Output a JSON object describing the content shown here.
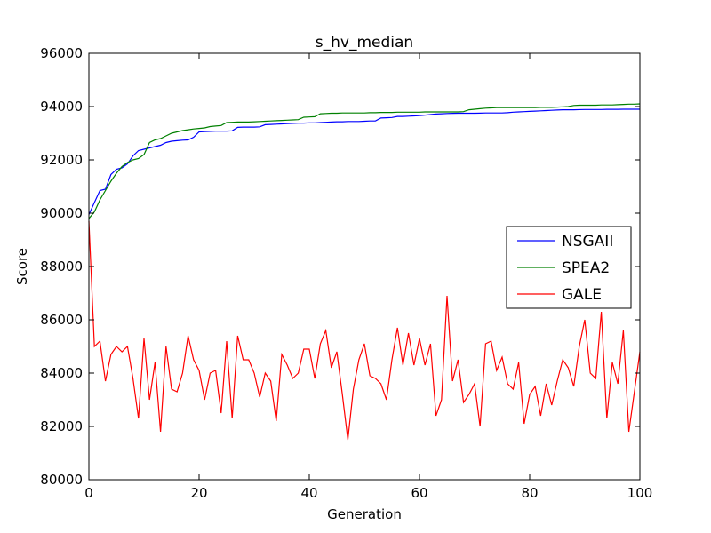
{
  "chart_data": {
    "type": "line",
    "title": "s_hv_median",
    "xlabel": "Generation",
    "ylabel": "Score",
    "xlim": [
      0,
      100
    ],
    "ylim": [
      80000,
      96000
    ],
    "xticks": [
      0,
      20,
      40,
      60,
      80,
      100
    ],
    "yticks": [
      80000,
      82000,
      84000,
      86000,
      88000,
      90000,
      92000,
      94000,
      96000
    ],
    "grid": false,
    "legend_position": "center-right",
    "x": [
      0,
      1,
      2,
      3,
      4,
      5,
      6,
      7,
      8,
      9,
      10,
      11,
      12,
      13,
      14,
      15,
      16,
      17,
      18,
      19,
      20,
      21,
      22,
      23,
      24,
      25,
      26,
      27,
      28,
      29,
      30,
      31,
      32,
      33,
      34,
      35,
      36,
      37,
      38,
      39,
      40,
      41,
      42,
      43,
      44,
      45,
      46,
      47,
      48,
      49,
      50,
      51,
      52,
      53,
      54,
      55,
      56,
      57,
      58,
      59,
      60,
      61,
      62,
      63,
      64,
      65,
      66,
      67,
      68,
      69,
      70,
      71,
      72,
      73,
      74,
      75,
      76,
      77,
      78,
      79,
      80,
      81,
      82,
      83,
      84,
      85,
      86,
      87,
      88,
      89,
      90,
      91,
      92,
      93,
      94,
      95,
      96,
      97,
      98,
      99,
      100
    ],
    "series": [
      {
        "name": "NSGAII",
        "color": "#0000ff",
        "values": [
          89950,
          90400,
          90850,
          90900,
          91450,
          91650,
          91700,
          91850,
          92150,
          92350,
          92400,
          92450,
          92500,
          92550,
          92650,
          92700,
          92720,
          92740,
          92750,
          92850,
          93050,
          93060,
          93070,
          93080,
          93080,
          93080,
          93090,
          93220,
          93230,
          93230,
          93230,
          93240,
          93320,
          93330,
          93340,
          93350,
          93360,
          93370,
          93380,
          93380,
          93390,
          93390,
          93400,
          93410,
          93420,
          93430,
          93430,
          93440,
          93440,
          93440,
          93450,
          93460,
          93460,
          93570,
          93580,
          93590,
          93630,
          93630,
          93640,
          93650,
          93660,
          93680,
          93700,
          93720,
          93730,
          93740,
          93745,
          93750,
          93750,
          93750,
          93750,
          93755,
          93760,
          93760,
          93760,
          93760,
          93770,
          93790,
          93800,
          93810,
          93820,
          93830,
          93840,
          93850,
          93860,
          93870,
          93880,
          93880,
          93880,
          93885,
          93890,
          93890,
          93890,
          93890,
          93895,
          93895,
          93895,
          93900,
          93900,
          93900,
          93900
        ]
      },
      {
        "name": "SPEA2",
        "color": "#008000",
        "values": [
          89800,
          90050,
          90500,
          90850,
          91200,
          91500,
          91750,
          91900,
          92000,
          92050,
          92200,
          92650,
          92750,
          92800,
          92900,
          93000,
          93050,
          93100,
          93130,
          93160,
          93180,
          93200,
          93250,
          93270,
          93290,
          93400,
          93410,
          93420,
          93420,
          93420,
          93430,
          93440,
          93450,
          93460,
          93470,
          93480,
          93490,
          93500,
          93510,
          93600,
          93610,
          93620,
          93730,
          93740,
          93750,
          93750,
          93760,
          93760,
          93760,
          93760,
          93760,
          93770,
          93770,
          93780,
          93780,
          93780,
          93790,
          93790,
          93790,
          93790,
          93790,
          93800,
          93800,
          93800,
          93800,
          93800,
          93800,
          93800,
          93810,
          93880,
          93900,
          93920,
          93940,
          93950,
          93960,
          93960,
          93960,
          93960,
          93960,
          93960,
          93960,
          93960,
          93970,
          93970,
          93970,
          93980,
          93990,
          94000,
          94040,
          94050,
          94050,
          94050,
          94050,
          94060,
          94060,
          94060,
          94070,
          94080,
          94090,
          94090,
          94100
        ]
      },
      {
        "name": "GALE",
        "color": "#ff0000",
        "values": [
          89700,
          85000,
          85200,
          83700,
          84700,
          85000,
          84800,
          85000,
          83800,
          82300,
          85300,
          83000,
          84400,
          81800,
          85000,
          83400,
          83300,
          84000,
          85400,
          84500,
          84100,
          83000,
          84000,
          84100,
          82500,
          85200,
          82300,
          85400,
          84500,
          84500,
          84000,
          83100,
          84000,
          83700,
          82200,
          84700,
          84300,
          83800,
          84000,
          84900,
          84900,
          83800,
          85100,
          85600,
          84200,
          84800,
          83200,
          81500,
          83400,
          84500,
          85100,
          83900,
          83800,
          83600,
          83000,
          84500,
          85700,
          84300,
          85500,
          84300,
          85300,
          84300,
          85100,
          82400,
          83000,
          86900,
          83700,
          84500,
          82900,
          83200,
          83600,
          82000,
          85100,
          85200,
          84100,
          84600,
          83600,
          83400,
          84400,
          82100,
          83200,
          83500,
          82400,
          83600,
          82800,
          83700,
          84500,
          84200,
          83500,
          85000,
          86000,
          84000,
          83800,
          86300,
          82300,
          84400,
          83600,
          85600,
          81800,
          83300,
          84800
        ]
      }
    ]
  }
}
